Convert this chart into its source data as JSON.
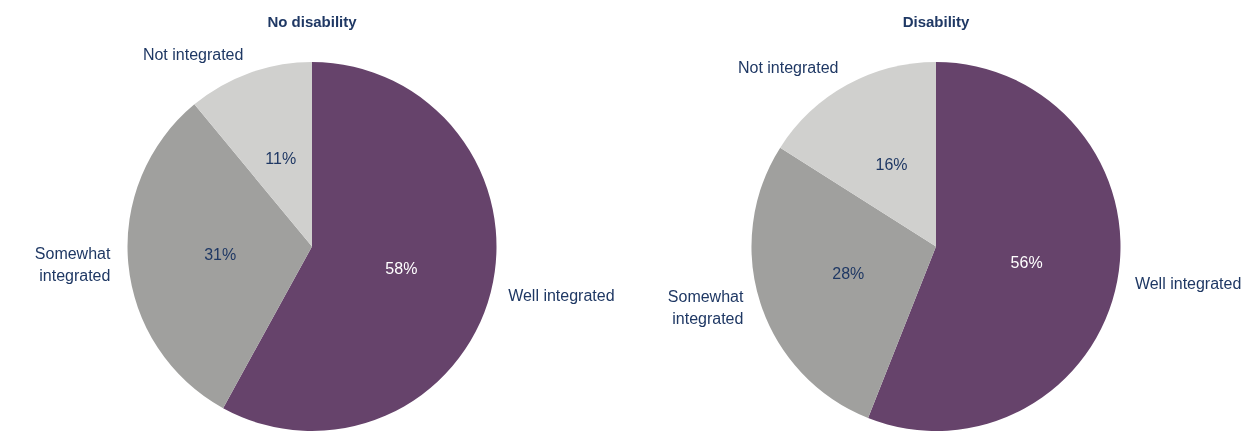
{
  "chart_data": [
    {
      "type": "pie",
      "title": "No disability",
      "categories": [
        "Well integrated",
        "Somewhat integrated",
        "Not integrated"
      ],
      "values": [
        58,
        31,
        11
      ],
      "colors": [
        "#66436b",
        "#a0a09e",
        "#d0d0ce"
      ],
      "value_labels": [
        "58%",
        "31%",
        "11%"
      ],
      "legend": false
    },
    {
      "type": "pie",
      "title": "Disability",
      "categories": [
        "Well integrated",
        "Somewhat integrated",
        "Not integrated"
      ],
      "values": [
        56,
        28,
        16
      ],
      "colors": [
        "#66436b",
        "#a0a09e",
        "#d0d0ce"
      ],
      "value_labels": [
        "56%",
        "28%",
        "16%"
      ],
      "legend": false
    }
  ]
}
